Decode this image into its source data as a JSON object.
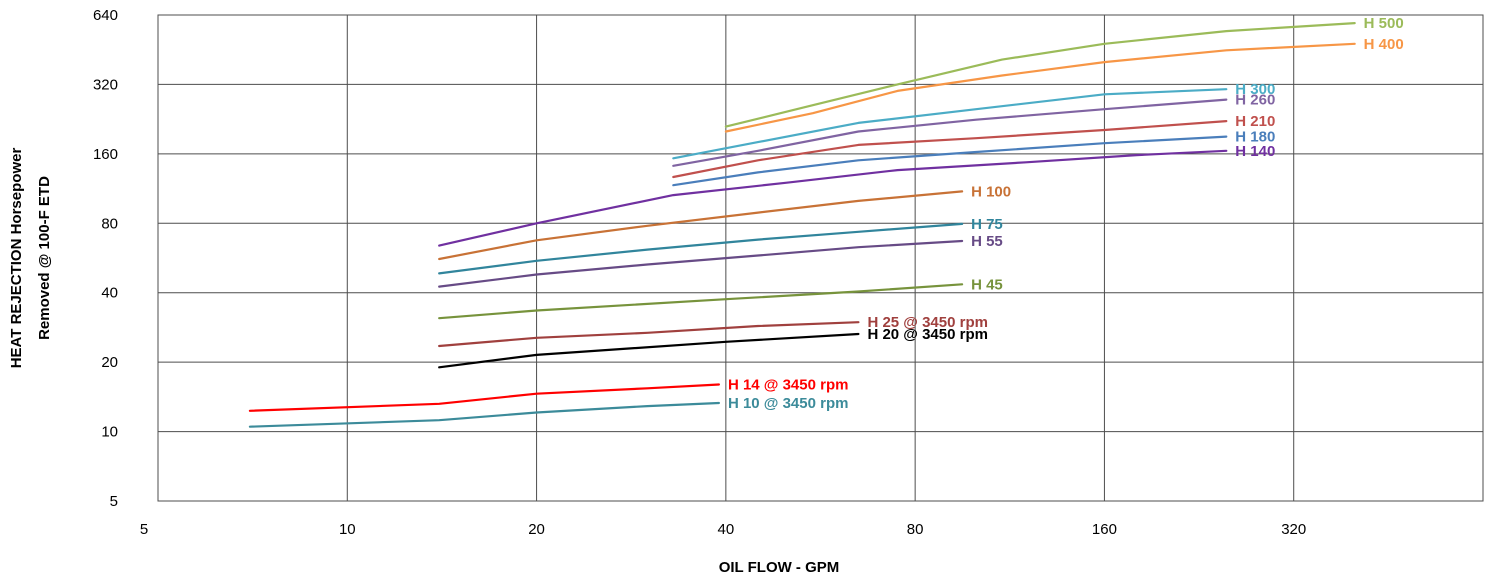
{
  "chart_data": {
    "type": "line",
    "xlabel": "OIL FLOW - GPM",
    "ylabel_lines": [
      "HEAT REJECTION Horsepower",
      "Removed @ 100-F ETD"
    ],
    "x_scale": "log2",
    "y_scale": "log2",
    "xlim": [
      5,
      640
    ],
    "ylim": [
      5,
      640
    ],
    "x_ticks": [
      5,
      10,
      20,
      40,
      80,
      160,
      320
    ],
    "x_tick_labels": [
      "5",
      "10",
      "20",
      "40",
      "80",
      "160",
      "320"
    ],
    "y_ticks": [
      5,
      10,
      20,
      40,
      80,
      160,
      320,
      640
    ],
    "y_tick_labels": [
      "5",
      "10",
      "20",
      "40",
      "80",
      "160",
      "320",
      "640"
    ],
    "grid": true,
    "legend": "inline labels at line ends",
    "series": [
      {
        "name": "H 10 @ 3450 rpm",
        "color": "#3c8b9a",
        "x": [
          7,
          14,
          20,
          30,
          39
        ],
        "y": [
          10.5,
          11.2,
          12.1,
          12.9,
          13.3
        ]
      },
      {
        "name": "H 14 @ 3450 rpm",
        "color": "#ff0000",
        "x": [
          7,
          14,
          20,
          30,
          39
        ],
        "y": [
          12.3,
          13.2,
          14.6,
          15.4,
          16.0
        ]
      },
      {
        "name": "H 20 @ 3450 rpm",
        "color": "#000000",
        "x": [
          14,
          20,
          40,
          65
        ],
        "y": [
          19.0,
          21.5,
          24.5,
          26.5
        ]
      },
      {
        "name": "H 25 @ 3450 rpm",
        "color": "#a0403e",
        "x": [
          14,
          20,
          30,
          45,
          65
        ],
        "y": [
          23.5,
          25.5,
          26.8,
          28.7,
          29.8
        ]
      },
      {
        "name": "H 45",
        "color": "#77933c",
        "x": [
          14,
          20,
          40,
          65,
          95
        ],
        "y": [
          31.0,
          33.5,
          37.5,
          40.5,
          43.5
        ]
      },
      {
        "name": "H 55",
        "color": "#674b86",
        "x": [
          14,
          20,
          30,
          45,
          65,
          95
        ],
        "y": [
          42.5,
          48.0,
          53.0,
          58.0,
          63.0,
          67.0
        ]
      },
      {
        "name": "H 75",
        "color": "#31859c",
        "x": [
          14,
          20,
          30,
          45,
          65,
          95
        ],
        "y": [
          48.5,
          55.0,
          61.5,
          68.0,
          73.5,
          79.5
        ]
      },
      {
        "name": "H 100",
        "color": "#c87236",
        "x": [
          14,
          20,
          30,
          45,
          65,
          95
        ],
        "y": [
          56.0,
          67.5,
          78.0,
          89.0,
          100.0,
          110.0
        ]
      },
      {
        "name": "H 140",
        "color": "#7030a0",
        "x": [
          14,
          20,
          33,
          50,
          75,
          120,
          180,
          250
        ],
        "y": [
          64.0,
          80.0,
          106.0,
          120.0,
          136.0,
          147.0,
          158.0,
          165.0
        ]
      },
      {
        "name": "H 180",
        "color": "#4a7ebb",
        "x": [
          33,
          45,
          65,
          100,
          160,
          250
        ],
        "y": [
          117.0,
          133.0,
          150.0,
          163.0,
          178.0,
          190.0
        ]
      },
      {
        "name": "H 210",
        "color": "#c0504d",
        "x": [
          33,
          45,
          65,
          100,
          160,
          250
        ],
        "y": [
          127.0,
          150.0,
          175.0,
          187.0,
          203.0,
          222.0
        ]
      },
      {
        "name": "H 260",
        "color": "#8064a2",
        "x": [
          33,
          45,
          65,
          100,
          160,
          250
        ],
        "y": [
          142.0,
          165.0,
          200.0,
          225.0,
          250.0,
          275.0
        ]
      },
      {
        "name": "H 300",
        "color": "#4bacc6",
        "x": [
          33,
          45,
          65,
          100,
          160,
          250
        ],
        "y": [
          153.0,
          180.0,
          218.0,
          250.0,
          290.0,
          305.0
        ]
      },
      {
        "name": "H 400",
        "color": "#f79646",
        "x": [
          40,
          55,
          75,
          110,
          160,
          250,
          400
        ],
        "y": [
          200.0,
          240.0,
          300.0,
          350.0,
          400.0,
          450.0,
          480.0
        ]
      },
      {
        "name": "H 500",
        "color": "#9bbb59",
        "x": [
          40,
          55,
          75,
          110,
          160,
          250,
          400
        ],
        "y": [
          210.0,
          260.0,
          320.0,
          410.0,
          480.0,
          545.0,
          590.0
        ]
      }
    ]
  }
}
